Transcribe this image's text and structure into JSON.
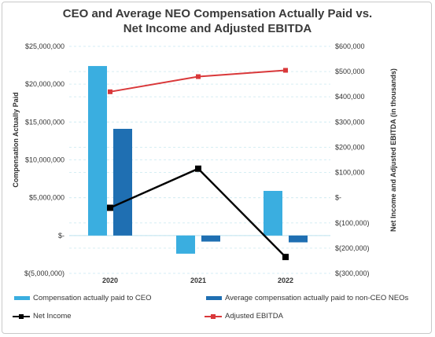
{
  "chart_data": {
    "type": "bar",
    "title_line1": "CEO and Average NEO Compensation Actually Paid vs.",
    "title_line2": "Net Income and Adjusted EBITDA",
    "ylabel": "Compensation Actually Paid",
    "y2label": "Net Income and Adjusted EBITDA (in thousands)",
    "categories": [
      "2020",
      "2021",
      "2022"
    ],
    "ylim": [
      -5000000,
      25000000
    ],
    "y_ticks": [
      25000000,
      20000000,
      15000000,
      10000000,
      5000000,
      0,
      -5000000
    ],
    "y_tick_labels": [
      "$25,000,000",
      "$20,000,000",
      "$15,000,000",
      "$10,000,000",
      "$5,000,000",
      "$-",
      "$(5,000,000)"
    ],
    "y2lim": [
      -300000,
      600000
    ],
    "y2_ticks": [
      600000,
      500000,
      400000,
      300000,
      200000,
      100000,
      0,
      -100000,
      -200000,
      -300000
    ],
    "y2_tick_labels": [
      "$600,000",
      "$500,000",
      "$400,000",
      "$300,000",
      "$200,000",
      "$100,000",
      "$-",
      "$(100,000)",
      "$(200,000)",
      "$(300,000)"
    ],
    "grid": true,
    "legend_position": "bottom",
    "series": [
      {
        "name": "Compensation actually paid to CEO",
        "kind": "bar",
        "axis": "left",
        "color": "#3aaee0",
        "values": [
          22400000,
          -2400000,
          5900000
        ]
      },
      {
        "name": "Average compensation actually paid to non-CEO NEOs",
        "kind": "bar",
        "axis": "left",
        "color": "#1f6fb2",
        "values": [
          14100000,
          -800000,
          -900000
        ]
      },
      {
        "name": "Net Income",
        "kind": "line",
        "axis": "right",
        "color": "#000000",
        "values": [
          -40000,
          115000,
          -235000
        ]
      },
      {
        "name": "Adjusted EBITDA",
        "kind": "line",
        "axis": "right",
        "color": "#d9383a",
        "values": [
          420000,
          480000,
          505000
        ]
      }
    ]
  }
}
